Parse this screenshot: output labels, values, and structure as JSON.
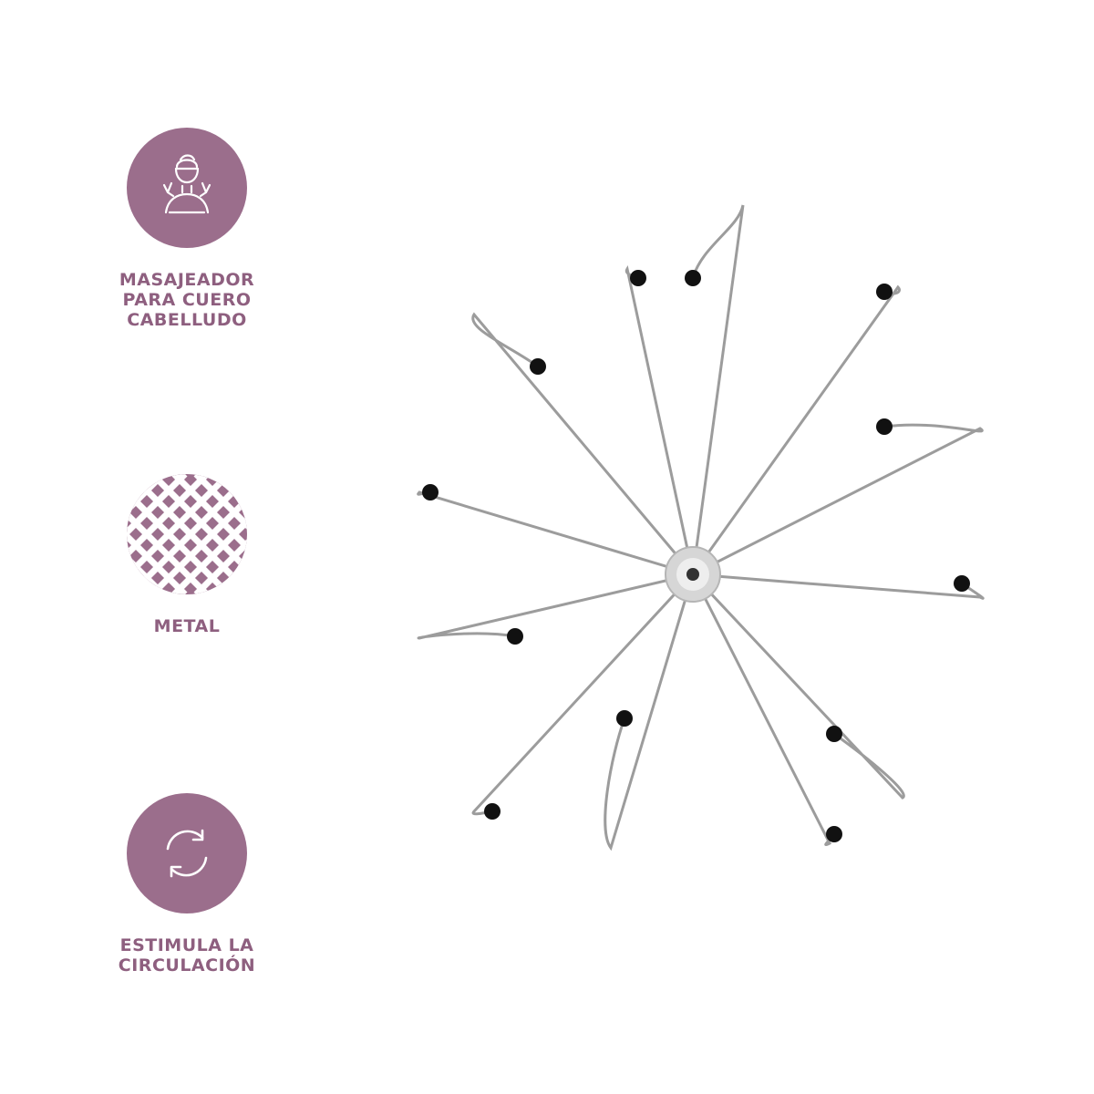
{
  "colors": {
    "brand": "#9b6e8c",
    "label": "#8e5f7f",
    "wire": "#9c9c9c",
    "tip": "#111111",
    "hub": "#cfcfcf"
  },
  "features": [
    {
      "icon": "scalp-massage-person-icon",
      "label": "MASAJEADOR\nPARA CUERO\nCABELLUDO"
    },
    {
      "icon": "metal-mesh-icon",
      "label": "METAL"
    },
    {
      "icon": "circulation-arrows-icon",
      "label": "ESTIMULA LA\nCIRCULACIÓN"
    }
  ],
  "product": {
    "icon": "scalp-massager-product",
    "prongs": 12
  }
}
